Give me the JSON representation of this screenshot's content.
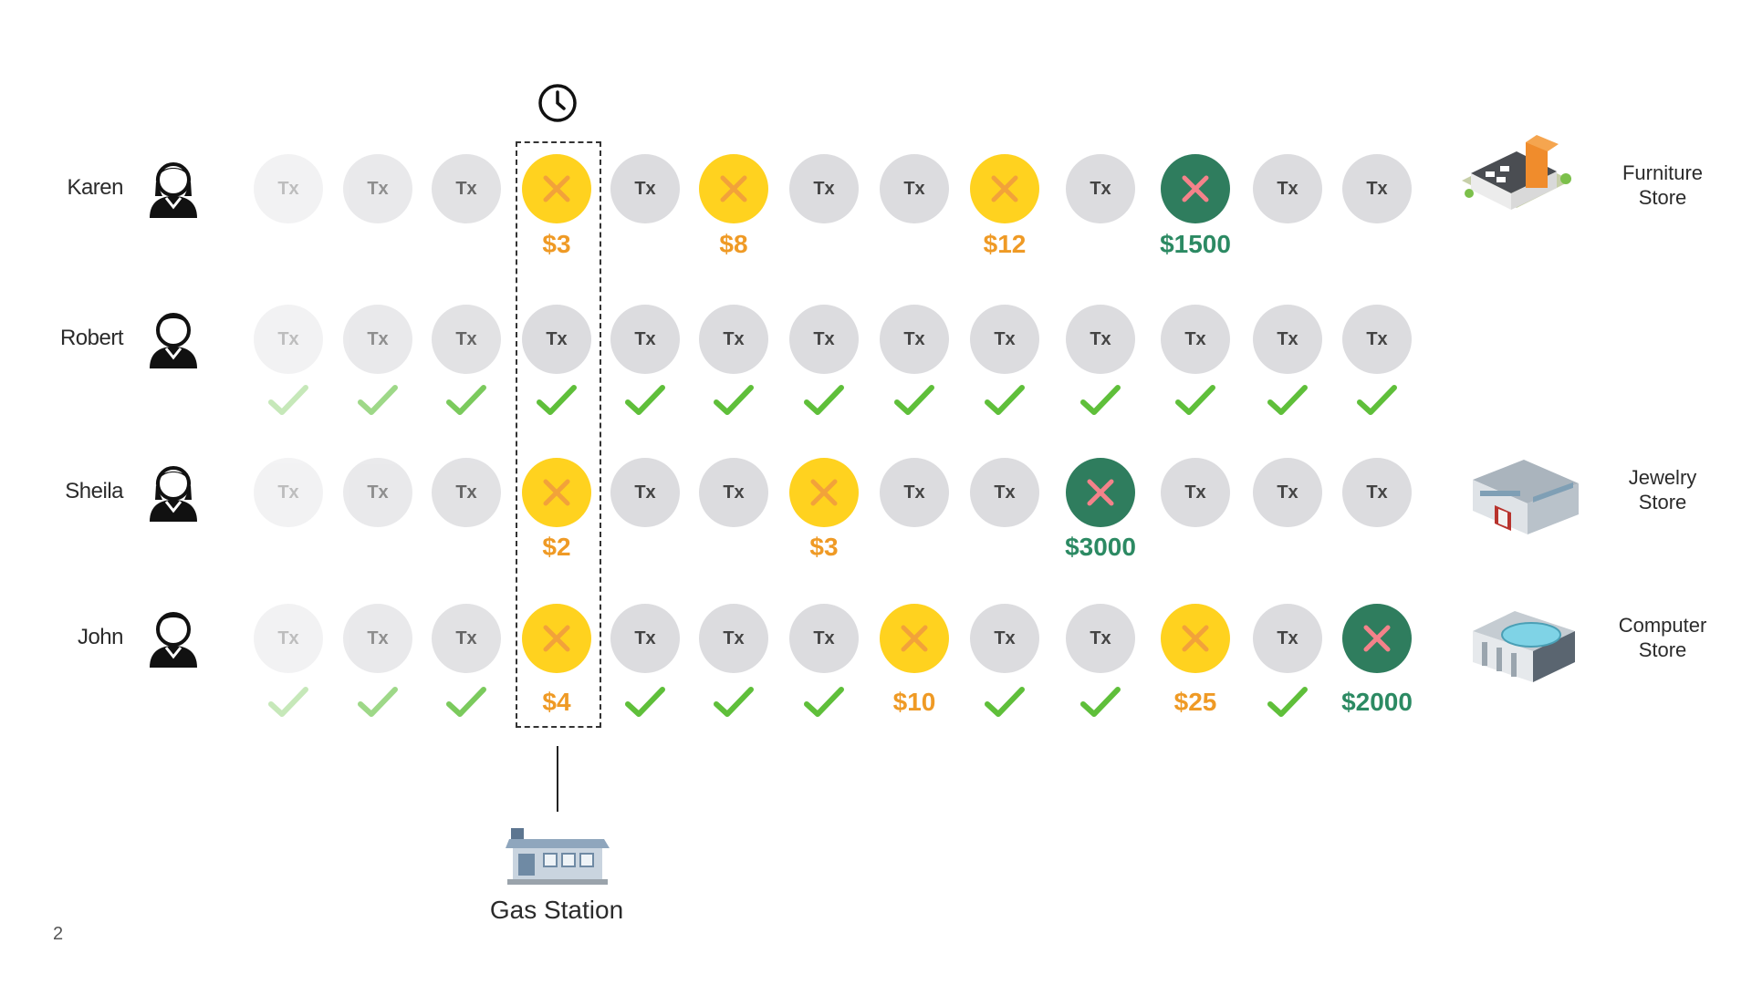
{
  "rows": [
    {
      "name": "Karen",
      "gender": "female",
      "cells": [
        {
          "k": "tx"
        },
        {
          "k": "tx"
        },
        {
          "k": "tx"
        },
        {
          "k": "fraud-small",
          "amount": "$3"
        },
        {
          "k": "tx"
        },
        {
          "k": "fraud-small",
          "amount": "$8"
        },
        {
          "k": "tx"
        },
        {
          "k": "tx"
        },
        {
          "k": "fraud-small",
          "amount": "$12"
        },
        {
          "k": "tx"
        },
        {
          "k": "fraud-large",
          "amount": "$1500"
        },
        {
          "k": "tx"
        },
        {
          "k": "tx"
        }
      ],
      "store": {
        "label_line1": "Furniture",
        "label_line2": "Store",
        "icon": "furniture-store-icon"
      }
    },
    {
      "name": "Robert",
      "gender": "male",
      "cells": [
        {
          "k": "tx",
          "ok": true
        },
        {
          "k": "tx",
          "ok": true
        },
        {
          "k": "tx",
          "ok": true
        },
        {
          "k": "tx",
          "ok": true
        },
        {
          "k": "tx",
          "ok": true
        },
        {
          "k": "tx",
          "ok": true
        },
        {
          "k": "tx",
          "ok": true
        },
        {
          "k": "tx",
          "ok": true
        },
        {
          "k": "tx",
          "ok": true
        },
        {
          "k": "tx",
          "ok": true
        },
        {
          "k": "tx",
          "ok": true
        },
        {
          "k": "tx",
          "ok": true
        },
        {
          "k": "tx",
          "ok": true
        }
      ]
    },
    {
      "name": "Sheila",
      "gender": "female",
      "cells": [
        {
          "k": "tx"
        },
        {
          "k": "tx"
        },
        {
          "k": "tx"
        },
        {
          "k": "fraud-small",
          "amount": "$2"
        },
        {
          "k": "tx"
        },
        {
          "k": "tx"
        },
        {
          "k": "fraud-small",
          "amount": "$3"
        },
        {
          "k": "tx"
        },
        {
          "k": "tx"
        },
        {
          "k": "fraud-large",
          "amount": "$3000"
        },
        {
          "k": "tx"
        },
        {
          "k": "tx"
        },
        {
          "k": "tx"
        }
      ],
      "store": {
        "label_line1": "Jewelry",
        "label_line2": "Store",
        "icon": "jewelry-store-icon"
      }
    },
    {
      "name": "John",
      "gender": "male",
      "cells": [
        {
          "k": "tx",
          "ok": true
        },
        {
          "k": "tx",
          "ok": true
        },
        {
          "k": "tx",
          "ok": true
        },
        {
          "k": "fraud-small",
          "amount": "$4"
        },
        {
          "k": "tx",
          "ok": true
        },
        {
          "k": "tx",
          "ok": true
        },
        {
          "k": "tx",
          "ok": true
        },
        {
          "k": "fraud-small",
          "amount": "$10"
        },
        {
          "k": "tx",
          "ok": true
        },
        {
          "k": "tx",
          "ok": true
        },
        {
          "k": "fraud-small",
          "amount": "$25"
        },
        {
          "k": "tx",
          "ok": true
        },
        {
          "k": "fraud-large",
          "amount": "$2000"
        }
      ],
      "store": {
        "label_line1": "Computer",
        "label_line2": "Store",
        "icon": "computer-store-icon"
      }
    }
  ],
  "tx_label": "Tx",
  "gas_station": {
    "label": "Gas Station",
    "icon": "gas-station-icon"
  },
  "clock_icon": "clock-icon",
  "page_number": "2",
  "colors": {
    "tx_gray": "#dcdcdf",
    "fraud_small": "#ffd21f",
    "fraud_small_x": "#f2a23a",
    "fraud_large": "#2f7d5e",
    "fraud_large_x": "#f4828a",
    "check_green": "#5fbf3a",
    "amount_small": "#ef9a25",
    "amount_large": "#2c8a63"
  }
}
